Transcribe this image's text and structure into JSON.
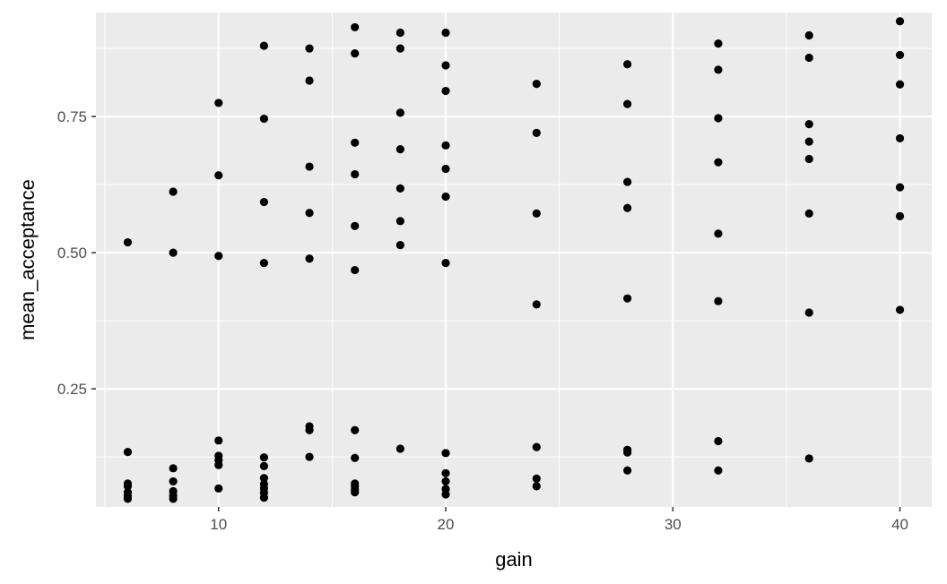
{
  "chart_data": {
    "type": "scatter",
    "title": "",
    "xlabel": "gain",
    "ylabel": "mean_acceptance",
    "xlim": [
      4.6,
      41.4
    ],
    "ylim": [
      0.033,
      0.941
    ],
    "x_ticks": [
      10,
      20,
      30,
      40
    ],
    "x_tick_labels": [
      "10",
      "20",
      "30",
      "40"
    ],
    "y_ticks": [
      0.25,
      0.5,
      0.75
    ],
    "y_tick_labels": [
      "0.25",
      "0.50",
      "0.75"
    ],
    "grid": true,
    "legend": "none",
    "colors": {
      "panel": "#EBEBEB",
      "grid": "#FFFFFF",
      "point": "#000000",
      "tick_text": "#4D4D4D",
      "tick_mark": "#333333"
    },
    "points": [
      {
        "x": 6,
        "y": 0.519
      },
      {
        "x": 6,
        "y": 0.134
      },
      {
        "x": 6,
        "y": 0.076
      },
      {
        "x": 6,
        "y": 0.071
      },
      {
        "x": 6,
        "y": 0.06
      },
      {
        "x": 6,
        "y": 0.053
      },
      {
        "x": 6,
        "y": 0.048
      },
      {
        "x": 8,
        "y": 0.612
      },
      {
        "x": 8,
        "y": 0.5
      },
      {
        "x": 8,
        "y": 0.104
      },
      {
        "x": 8,
        "y": 0.08
      },
      {
        "x": 8,
        "y": 0.062
      },
      {
        "x": 8,
        "y": 0.054
      },
      {
        "x": 8,
        "y": 0.048
      },
      {
        "x": 10,
        "y": 0.775
      },
      {
        "x": 10,
        "y": 0.642
      },
      {
        "x": 10,
        "y": 0.494
      },
      {
        "x": 10,
        "y": 0.155
      },
      {
        "x": 10,
        "y": 0.127
      },
      {
        "x": 10,
        "y": 0.119
      },
      {
        "x": 10,
        "y": 0.11
      },
      {
        "x": 10,
        "y": 0.067
      },
      {
        "x": 12,
        "y": 0.88
      },
      {
        "x": 12,
        "y": 0.746
      },
      {
        "x": 12,
        "y": 0.593
      },
      {
        "x": 12,
        "y": 0.481
      },
      {
        "x": 12,
        "y": 0.124
      },
      {
        "x": 12,
        "y": 0.108
      },
      {
        "x": 12,
        "y": 0.086
      },
      {
        "x": 12,
        "y": 0.075
      },
      {
        "x": 12,
        "y": 0.067
      },
      {
        "x": 12,
        "y": 0.059
      },
      {
        "x": 12,
        "y": 0.05
      },
      {
        "x": 14,
        "y": 0.875
      },
      {
        "x": 14,
        "y": 0.816
      },
      {
        "x": 14,
        "y": 0.658
      },
      {
        "x": 14,
        "y": 0.573
      },
      {
        "x": 14,
        "y": 0.489
      },
      {
        "x": 14,
        "y": 0.181
      },
      {
        "x": 14,
        "y": 0.174
      },
      {
        "x": 14,
        "y": 0.125
      },
      {
        "x": 16,
        "y": 0.914
      },
      {
        "x": 16,
        "y": 0.866
      },
      {
        "x": 16,
        "y": 0.702
      },
      {
        "x": 16,
        "y": 0.644
      },
      {
        "x": 16,
        "y": 0.549
      },
      {
        "x": 16,
        "y": 0.468
      },
      {
        "x": 16,
        "y": 0.174
      },
      {
        "x": 16,
        "y": 0.123
      },
      {
        "x": 16,
        "y": 0.076
      },
      {
        "x": 16,
        "y": 0.071
      },
      {
        "x": 16,
        "y": 0.065
      },
      {
        "x": 16,
        "y": 0.06
      },
      {
        "x": 18,
        "y": 0.904
      },
      {
        "x": 18,
        "y": 0.875
      },
      {
        "x": 18,
        "y": 0.757
      },
      {
        "x": 18,
        "y": 0.69
      },
      {
        "x": 18,
        "y": 0.618
      },
      {
        "x": 18,
        "y": 0.558
      },
      {
        "x": 18,
        "y": 0.514
      },
      {
        "x": 18,
        "y": 0.14
      },
      {
        "x": 20,
        "y": 0.904
      },
      {
        "x": 20,
        "y": 0.844
      },
      {
        "x": 20,
        "y": 0.797
      },
      {
        "x": 20,
        "y": 0.697
      },
      {
        "x": 20,
        "y": 0.654
      },
      {
        "x": 20,
        "y": 0.603
      },
      {
        "x": 20,
        "y": 0.481
      },
      {
        "x": 20,
        "y": 0.132
      },
      {
        "x": 20,
        "y": 0.095
      },
      {
        "x": 20,
        "y": 0.08
      },
      {
        "x": 20,
        "y": 0.066
      },
      {
        "x": 20,
        "y": 0.056
      },
      {
        "x": 24,
        "y": 0.81
      },
      {
        "x": 24,
        "y": 0.72
      },
      {
        "x": 24,
        "y": 0.572
      },
      {
        "x": 24,
        "y": 0.405
      },
      {
        "x": 24,
        "y": 0.143
      },
      {
        "x": 24,
        "y": 0.085
      },
      {
        "x": 24,
        "y": 0.071
      },
      {
        "x": 28,
        "y": 0.846
      },
      {
        "x": 28,
        "y": 0.773
      },
      {
        "x": 28,
        "y": 0.63
      },
      {
        "x": 28,
        "y": 0.582
      },
      {
        "x": 28,
        "y": 0.416
      },
      {
        "x": 28,
        "y": 0.138
      },
      {
        "x": 28,
        "y": 0.133
      },
      {
        "x": 28,
        "y": 0.1
      },
      {
        "x": 32,
        "y": 0.884
      },
      {
        "x": 32,
        "y": 0.836
      },
      {
        "x": 32,
        "y": 0.747
      },
      {
        "x": 32,
        "y": 0.666
      },
      {
        "x": 32,
        "y": 0.535
      },
      {
        "x": 32,
        "y": 0.411
      },
      {
        "x": 32,
        "y": 0.154
      },
      {
        "x": 32,
        "y": 0.1
      },
      {
        "x": 36,
        "y": 0.899
      },
      {
        "x": 36,
        "y": 0.858
      },
      {
        "x": 36,
        "y": 0.736
      },
      {
        "x": 36,
        "y": 0.704
      },
      {
        "x": 36,
        "y": 0.672
      },
      {
        "x": 36,
        "y": 0.572
      },
      {
        "x": 36,
        "y": 0.39
      },
      {
        "x": 36,
        "y": 0.122
      },
      {
        "x": 40,
        "y": 0.925
      },
      {
        "x": 40,
        "y": 0.863
      },
      {
        "x": 40,
        "y": 0.809
      },
      {
        "x": 40,
        "y": 0.71
      },
      {
        "x": 40,
        "y": 0.62
      },
      {
        "x": 40,
        "y": 0.567
      },
      {
        "x": 40,
        "y": 0.395
      }
    ]
  }
}
